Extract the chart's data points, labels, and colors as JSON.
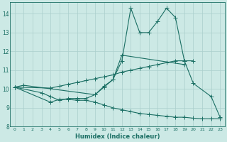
{
  "x_values": [
    0,
    1,
    2,
    3,
    4,
    5,
    6,
    7,
    8,
    9,
    10,
    11,
    12,
    13,
    14,
    15,
    16,
    17,
    18,
    19,
    20,
    21,
    22,
    23
  ],
  "line1": [
    10.1,
    10.2,
    null,
    null,
    null,
    null,
    null,
    null,
    null,
    9.7,
    10.1,
    10.5,
    11.5,
    14.3,
    13.0,
    13.0,
    13.6,
    14.3,
    13.8,
    11.5,
    10.3,
    null,
    9.6,
    8.5
  ],
  "line2": [
    10.1,
    null,
    null,
    9.8,
    9.6,
    9.4,
    9.5,
    9.5,
    9.5,
    9.7,
    10.15,
    10.5,
    11.8,
    null,
    null,
    null,
    null,
    null,
    null,
    11.3,
    null,
    null,
    null,
    null
  ],
  "line3": [
    10.1,
    null,
    null,
    null,
    9.3,
    9.45,
    9.45,
    9.4,
    9.4,
    9.3,
    9.15,
    9.0,
    8.9,
    8.8,
    8.7,
    8.65,
    8.6,
    8.55,
    8.5,
    8.5,
    8.45,
    8.42,
    8.42,
    8.42
  ],
  "line4": [
    10.1,
    null,
    null,
    null,
    10.05,
    10.15,
    10.25,
    10.35,
    10.45,
    10.55,
    10.65,
    10.75,
    10.9,
    11.0,
    11.1,
    11.2,
    11.3,
    11.4,
    11.5,
    11.5,
    11.5,
    null,
    null,
    null
  ],
  "bg_color": "#cce9e5",
  "grid_color": "#aacfcc",
  "line_color": "#1a6e63",
  "xlabel": "Humidex (Indice chaleur)",
  "xlim": [
    -0.5,
    23.5
  ],
  "ylim": [
    8.0,
    14.6
  ],
  "yticks": [
    8,
    9,
    10,
    11,
    12,
    13,
    14
  ],
  "xtick_labels": [
    "0",
    "1",
    "2",
    "3",
    "4",
    "5",
    "6",
    "7",
    "8",
    "9",
    "10",
    "11",
    "12",
    "13",
    "14",
    "15",
    "16",
    "17",
    "18",
    "19",
    "20",
    "21",
    "22",
    "23"
  ]
}
